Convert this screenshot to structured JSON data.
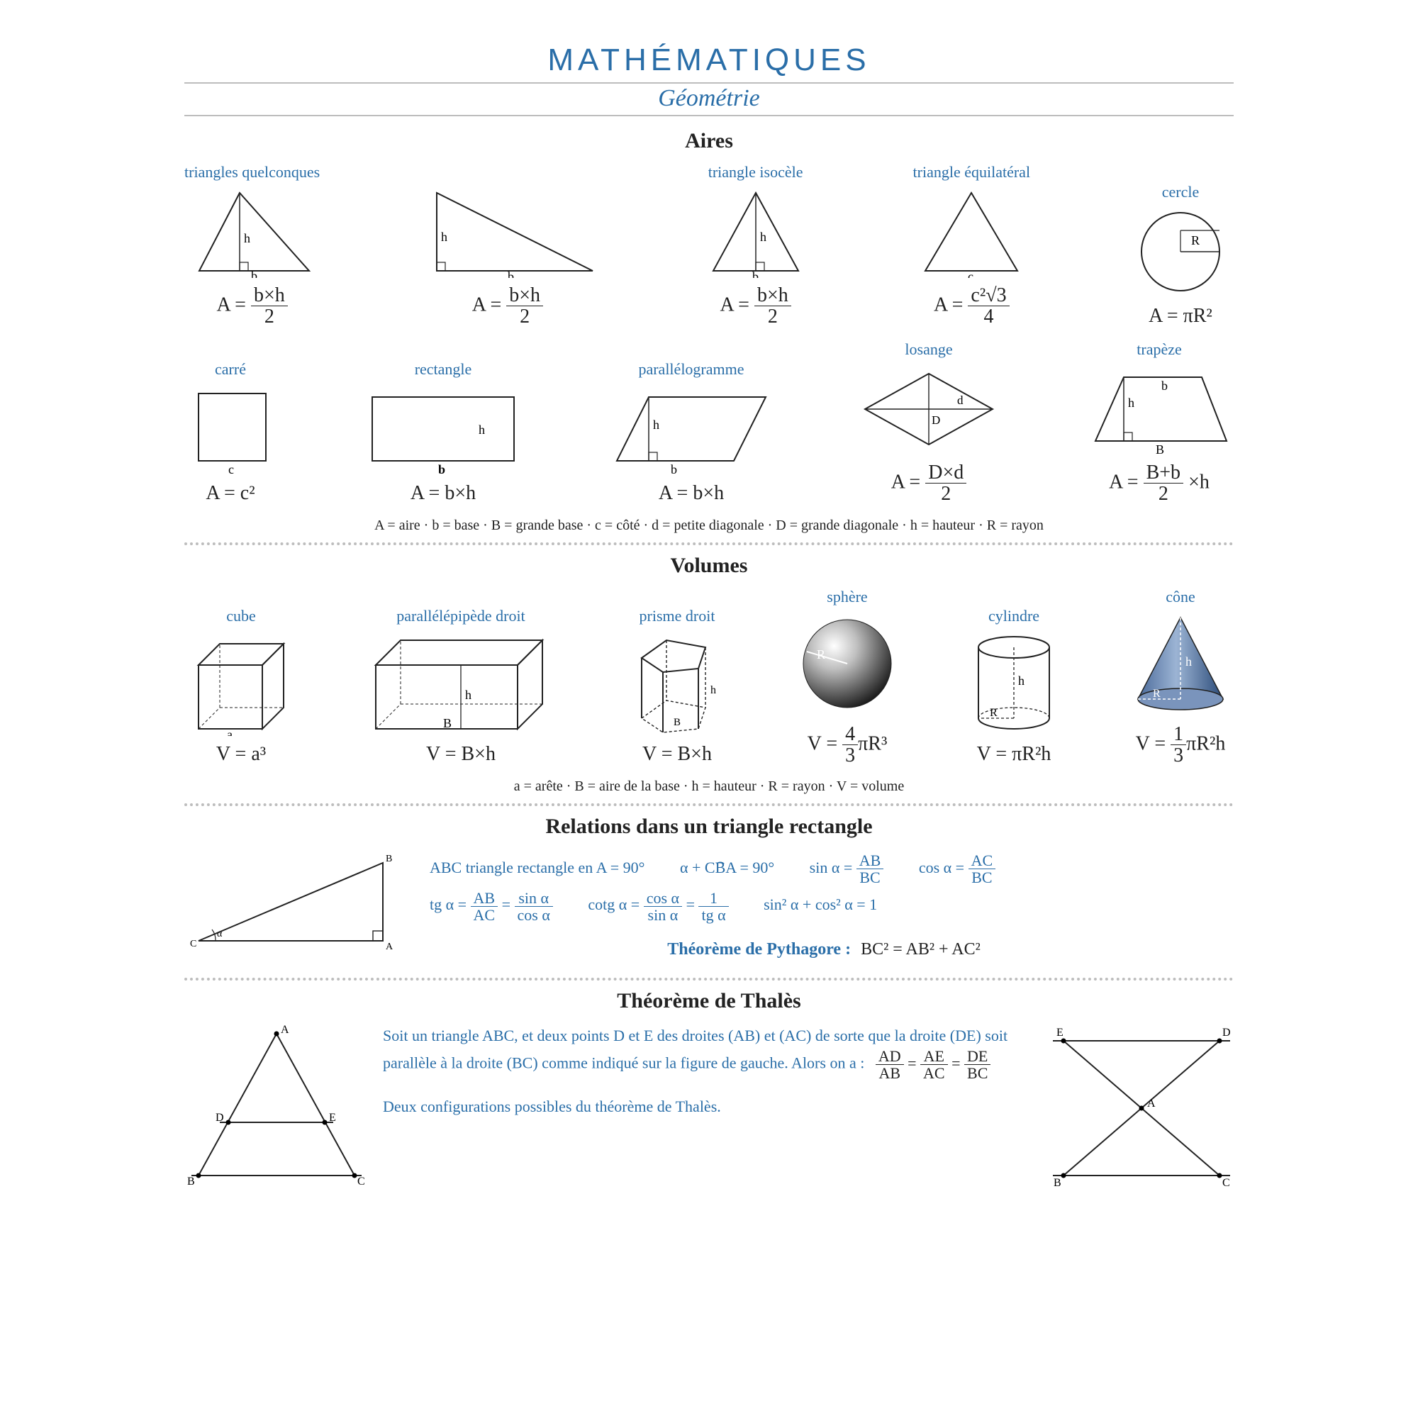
{
  "colors": {
    "blue": "#2a6ea8",
    "black": "#222222",
    "grey": "#bdbdbd",
    "background": "#ffffff"
  },
  "title": "MATHÉMATIQUES",
  "subtitle": "Géométrie",
  "aires": {
    "heading": "Aires",
    "row1": [
      {
        "label": "triangles quelconques",
        "formula_html": "A = <span class='frac'><span class='num'>b×h</span><span class='den'>2</span></span>"
      },
      {
        "label": "",
        "formula_html": "A = <span class='frac'><span class='num'>b×h</span><span class='den'>2</span></span>"
      },
      {
        "label": "triangle isocèle",
        "formula_html": "A = <span class='frac'><span class='num'>b×h</span><span class='den'>2</span></span>"
      },
      {
        "label": "triangle équilatéral",
        "formula_html": "A = <span class='frac'><span class='num'>c²√3</span><span class='den'>4</span></span>"
      },
      {
        "label": "cercle",
        "formula_html": "A = πR²"
      }
    ],
    "row2": [
      {
        "label": "carré",
        "formula_html": "A = c²"
      },
      {
        "label": "rectangle",
        "formula_html": "A = b×h"
      },
      {
        "label": "parallélogramme",
        "formula_html": "A = b×h"
      },
      {
        "label": "losange",
        "formula_html": "A = <span class='frac'><span class='num'>D×d</span><span class='den'>2</span></span>"
      },
      {
        "label": "trapèze",
        "formula_html": "A = <span class='frac'><span class='num'>B+b</span><span class='den'>2</span></span> ×h"
      }
    ],
    "legend": "A = aire  ·  b = base  ·  B = grande base  ·  c = côté  ·  d = petite diagonale  ·  D = grande diagonale  ·  h = hauteur  ·  R = rayon"
  },
  "volumes": {
    "heading": "Volumes",
    "items": [
      {
        "label": "cube",
        "formula_html": "V = a³"
      },
      {
        "label": "parallélépipède droit",
        "formula_html": "V = B×h"
      },
      {
        "label": "prisme droit",
        "formula_html": "V = B×h"
      },
      {
        "label": "sphère",
        "formula_html": "V = <span class='frac'><span class='num'>4</span><span class='den'>3</span></span>πR³"
      },
      {
        "label": "cylindre",
        "formula_html": "V = πR²h"
      },
      {
        "label": "cône",
        "formula_html": "V = <span class='frac'><span class='num'>1</span><span class='den'>3</span></span>πR²h"
      }
    ],
    "legend": "a = arête  ·  B = aire de la base  ·  h = hauteur  ·  R = rayon  ·  V = volume"
  },
  "relations": {
    "heading": "Relations dans un triangle rectangle",
    "line1": {
      "a": "ABC triangle rectangle en A = 90°",
      "b_html": "α + <span class='hat'>CBA</span> = 90°",
      "c_html": "sin α = <span class='frac'><span class='num'>AB</span><span class='den'>BC</span></span>",
      "d_html": "cos α = <span class='frac'><span class='num'>AC</span><span class='den'>BC</span></span>"
    },
    "line2": {
      "a_html": "tg α = <span class='frac'><span class='num'>AB</span><span class='den'>AC</span></span> = <span class='frac'><span class='num'>sin α</span><span class='den'>cos α</span></span>",
      "b_html": "cotg α = <span class='frac'><span class='num'>cos α</span><span class='den'>sin α</span></span> = <span class='frac'><span class='num'>1</span><span class='den'>tg α</span></span>",
      "c_html": "sin² α + cos² α = 1"
    },
    "pythagore_label": "Théorème de Pythagore :",
    "pythagore_formula": "BC² = AB² + AC²"
  },
  "thales": {
    "heading": "Théorème de Thalès",
    "para": "Soit un triangle ABC, et deux points D et E des droites (AB) et (AC) de sorte que la droite (DE) soit parallèle à la droite (BC) comme indiqué sur la figure de gauche. Alors on a :",
    "ratio_html": "<span class='frac'><span class='num'>AD</span><span class='den'>AB</span></span> = <span class='frac'><span class='num'>AE</span><span class='den'>AC</span></span> = <span class='frac'><span class='num'>DE</span><span class='den'>BC</span></span>",
    "caption": "Deux configurations possibles du théorème de Thalès."
  },
  "dim_labels": {
    "h": "h",
    "b": "b",
    "c": "c",
    "R": "R",
    "a": "a",
    "B": "B",
    "D": "D",
    "d": "d",
    "bigB": "B"
  }
}
